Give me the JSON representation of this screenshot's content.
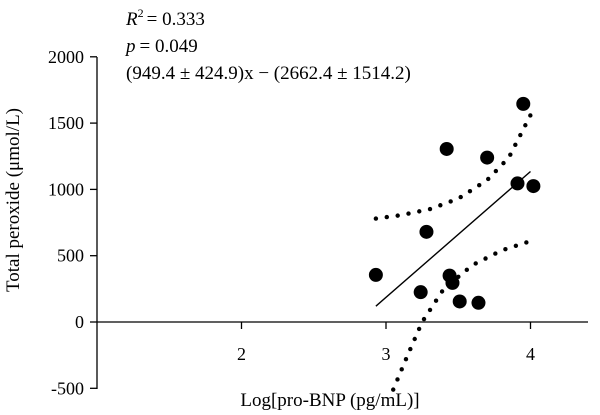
{
  "chart_data": {
    "type": "scatter",
    "title": "",
    "xlabel": "Log[pro-BNP (pg/mL)]",
    "ylabel": "Total peroxide (μmol/L)",
    "xlim": [
      1.0,
      4.4
    ],
    "ylim": [
      -500,
      2000
    ],
    "x_ticks": [
      2,
      3,
      4
    ],
    "y_ticks": [
      -500,
      0,
      500,
      1000,
      1500,
      2000
    ],
    "grid": false,
    "points": [
      {
        "x": 2.93,
        "y": 355
      },
      {
        "x": 3.24,
        "y": 225
      },
      {
        "x": 3.28,
        "y": 680
      },
      {
        "x": 3.42,
        "y": 1305
      },
      {
        "x": 3.44,
        "y": 350
      },
      {
        "x": 3.46,
        "y": 295
      },
      {
        "x": 3.51,
        "y": 155
      },
      {
        "x": 3.64,
        "y": 145
      },
      {
        "x": 3.7,
        "y": 1240
      },
      {
        "x": 3.91,
        "y": 1045
      },
      {
        "x": 3.95,
        "y": 1645
      },
      {
        "x": 4.02,
        "y": 1025
      }
    ],
    "fit": {
      "slope": 949.4,
      "intercept": -2662.4,
      "x_range": [
        2.93,
        4.0
      ]
    },
    "ci_upper": [
      {
        "x": 2.93,
        "y": 780
      },
      {
        "x": 3.1,
        "y": 805
      },
      {
        "x": 3.3,
        "y": 850
      },
      {
        "x": 3.5,
        "y": 930
      },
      {
        "x": 3.7,
        "y": 1070
      },
      {
        "x": 3.85,
        "y": 1240
      },
      {
        "x": 4.0,
        "y": 1560
      }
    ],
    "ci_lower": [
      {
        "x": 3.05,
        "y": -510
      },
      {
        "x": 3.15,
        "y": -250
      },
      {
        "x": 3.25,
        "y": 0
      },
      {
        "x": 3.4,
        "y": 250
      },
      {
        "x": 3.6,
        "y": 430
      },
      {
        "x": 3.8,
        "y": 540
      },
      {
        "x": 4.0,
        "y": 610
      }
    ],
    "annotations": {
      "r2": "= 0.333",
      "p": "= 0.049",
      "equation": "(949.4 ± 424.9)x − (2662.4 ± 1514.2)"
    }
  }
}
